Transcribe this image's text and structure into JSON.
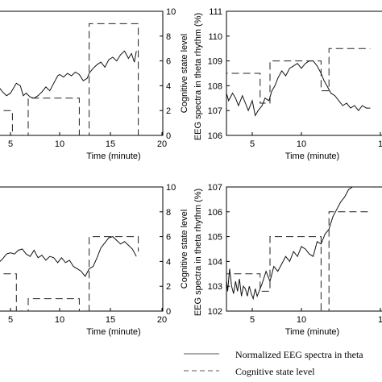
{
  "chart_data": [
    {
      "type": "line",
      "xlabel": "Time (minute)",
      "ylabel_right": "Cognitive state level",
      "xticks": [
        "5",
        "10",
        "15",
        "20"
      ],
      "right_ticks": [
        "0",
        "2",
        "4",
        "6",
        "8",
        "10"
      ],
      "xlim": [
        2,
        20
      ],
      "right_ylim": [
        0,
        10
      ],
      "series": [
        {
          "style": "solid",
          "axis": "right",
          "x": [
            2,
            2.8,
            3,
            3.4,
            3.8,
            4.2,
            4.6,
            5,
            5.3,
            5.6,
            6,
            6.3,
            6.6,
            7,
            7.4,
            7.8,
            8.2,
            8.6,
            9,
            9.4,
            9.8,
            10,
            10.4,
            10.8,
            11.2,
            11.6,
            12,
            12.4,
            12.8,
            13,
            13.4,
            13.8,
            14.2,
            14.6,
            15,
            15.4,
            15.8,
            16.2,
            16.6,
            17,
            17.3,
            17.6,
            17.8
          ],
          "y": [
            3.3,
            3.8,
            3.9,
            4.1,
            3.9,
            3.5,
            3.2,
            3.4,
            3.8,
            4.2,
            4,
            3.2,
            3.4,
            3.1,
            3.0,
            3.2,
            3.5,
            3.9,
            3.6,
            4.2,
            4.8,
            4.9,
            4.7,
            5.0,
            4.8,
            5.1,
            4.9,
            4.4,
            4.6,
            5.0,
            5.4,
            5.7,
            5.9,
            5.5,
            6.1,
            6.3,
            6.0,
            6.5,
            6.8,
            6.2,
            6.6,
            5.9,
            6.8
          ]
        },
        {
          "style": "dashed",
          "axis": "right",
          "x": [
            2,
            5.2,
            5.2,
            6.8,
            6.8,
            12,
            12,
            13,
            13,
            18,
            18
          ],
          "y": [
            2,
            2,
            0,
            0,
            3,
            3,
            0,
            0,
            9,
            9,
            0
          ]
        }
      ]
    },
    {
      "type": "line",
      "xlabel": "Time (minute)",
      "ylabel_left": "EEG spectra in theta rhythm (%)",
      "xticks": [
        "5",
        "10",
        "1"
      ],
      "left_ticks": [
        "106",
        "107",
        "108",
        "109",
        "110",
        "111"
      ],
      "xlim": [
        0,
        17
      ],
      "left_ylim": [
        106,
        111
      ],
      "series": [
        {
          "style": "solid",
          "axis": "left",
          "x": [
            1.2,
            1.4,
            1.7,
            2,
            2.3,
            2.6,
            3,
            3.3,
            3.6,
            4,
            4.3,
            4.6,
            5,
            5.3,
            5.6,
            6,
            6.3,
            6.7,
            7,
            7.3,
            7.6,
            8,
            8.4,
            8.8,
            9.2,
            9.6,
            10,
            10.4,
            10.8,
            11.2,
            11.6,
            12,
            12.3,
            12.6,
            13,
            13.4,
            13.8,
            14.2,
            14.6,
            15,
            15.4,
            15.8,
            16.2,
            16.6,
            17
          ],
          "y": [
            108.6,
            108.2,
            107.9,
            107.6,
            107.8,
            107.4,
            107.7,
            107.5,
            107.2,
            107.6,
            107.3,
            107.0,
            107.4,
            106.8,
            107.0,
            107.2,
            107.5,
            107.4,
            107.8,
            108.0,
            108.3,
            108.6,
            108.4,
            108.7,
            108.8,
            108.9,
            108.7,
            108.9,
            109.0,
            109.0,
            108.8,
            108.5,
            108.2,
            108.0,
            107.7,
            107.6,
            107.4,
            107.2,
            107.3,
            107.1,
            107.2,
            107.0,
            107.2,
            107.1,
            107.1
          ]
        },
        {
          "style": "dashed",
          "axis": "left",
          "x": [
            1.2,
            1.2,
            5.8,
            5.8,
            6.8,
            6.8,
            12,
            12,
            12.8,
            12.8,
            17
          ],
          "y": [
            106,
            108.5,
            108.5,
            107.3,
            107.3,
            109.0,
            109.0,
            107.8,
            107.8,
            109.5,
            109.5
          ]
        }
      ]
    },
    {
      "type": "line",
      "xlabel": "Time (minute)",
      "ylabel_right": "Cognitive state level",
      "xticks": [
        "5",
        "10",
        "15",
        "20"
      ],
      "right_ticks": [
        "0",
        "2",
        "4",
        "6",
        "8",
        "10"
      ],
      "xlim": [
        2,
        20
      ],
      "right_ylim": [
        0,
        10
      ],
      "series": [
        {
          "style": "solid",
          "axis": "right",
          "x": [
            2,
            2.6,
            3,
            3.4,
            3.8,
            4.2,
            4.6,
            5,
            5.4,
            5.8,
            6.2,
            6.6,
            7,
            7.4,
            7.8,
            8.2,
            8.6,
            9,
            9.4,
            9.8,
            10.2,
            10.6,
            11,
            11.4,
            11.8,
            12.2,
            12.6,
            13,
            13.4,
            13.8,
            14.2,
            14.6,
            15,
            15.4,
            15.8,
            16.2,
            16.6,
            17,
            17.4,
            17.8
          ],
          "y": [
            3.4,
            3.2,
            3.7,
            3.5,
            3.9,
            4.2,
            4.6,
            4.7,
            4.6,
            4.9,
            5.0,
            4.6,
            4.4,
            4.9,
            4.3,
            4.5,
            4.1,
            4.4,
            4.3,
            3.9,
            4.3,
            3.9,
            4.1,
            3.6,
            3.4,
            3.2,
            2.8,
            3.4,
            3.6,
            4.3,
            5.1,
            5.5,
            5.9,
            6.0,
            5.7,
            5.4,
            5.6,
            5.3,
            5.0,
            4.4
          ]
        },
        {
          "style": "dashed",
          "axis": "right",
          "x": [
            2,
            5.6,
            5.6,
            6.8,
            6.8,
            12,
            12,
            13,
            13,
            18,
            18
          ],
          "y": [
            3,
            3,
            0,
            0,
            1,
            1,
            0,
            0,
            6,
            6,
            4.8
          ]
        }
      ]
    },
    {
      "type": "line",
      "xlabel": "Time (minute)",
      "ylabel_left": "EEG spectra in theta rhythm (%)",
      "xticks": [
        "5",
        "10",
        "1"
      ],
      "left_ticks": [
        "102",
        "103",
        "104",
        "105",
        "106",
        "107"
      ],
      "xlim": [
        0,
        17
      ],
      "left_ylim": [
        102,
        107
      ],
      "series": [
        {
          "style": "solid",
          "axis": "left",
          "x": [
            1.3,
            1.5,
            1.7,
            1.9,
            2.1,
            2.3,
            2.5,
            2.7,
            2.9,
            3.1,
            3.3,
            3.5,
            3.7,
            3.9,
            4.1,
            4.3,
            4.5,
            4.7,
            4.9,
            5.1,
            5.3,
            5.5,
            5.7,
            6,
            6.4,
            6.8,
            7.2,
            7.6,
            8,
            8.4,
            8.8,
            9.2,
            9.6,
            10,
            10.4,
            10.8,
            11.2,
            11.6,
            12,
            12.4,
            12.8,
            13.2,
            13.6,
            14,
            14.4,
            14.8,
            15.2,
            15.6,
            16,
            16.4,
            16.8,
            17
          ],
          "y": [
            104.4,
            103.4,
            103.1,
            103.6,
            102.9,
            103.5,
            102.8,
            103.7,
            103.0,
            102.7,
            103.2,
            102.8,
            103.3,
            102.6,
            103.0,
            102.9,
            102.6,
            103.0,
            102.7,
            102.5,
            102.9,
            102.6,
            102.8,
            103.1,
            103.6,
            103.2,
            103.8,
            103.6,
            103.9,
            104.2,
            104.0,
            104.4,
            104.2,
            104.6,
            104.5,
            104.3,
            104.2,
            104.8,
            104.7,
            105.1,
            105.3,
            105.8,
            106.1,
            106.4,
            106.6,
            106.9,
            107.0,
            107.0,
            107.0,
            107.0,
            107.0,
            107.0
          ]
        },
        {
          "style": "dashed",
          "axis": "left",
          "x": [
            1.2,
            1.2,
            5.8,
            5.8,
            6.8,
            6.8,
            12,
            12,
            12.8,
            12.8,
            17
          ],
          "y": [
            102,
            103.5,
            103.5,
            102.8,
            102.8,
            105.0,
            105.0,
            102.0,
            102.0,
            106.0,
            106.0
          ]
        }
      ]
    }
  ],
  "legend": {
    "solid_label": "Normalized EEG spectra in theta",
    "dashed_label": "Cognitive state level"
  }
}
